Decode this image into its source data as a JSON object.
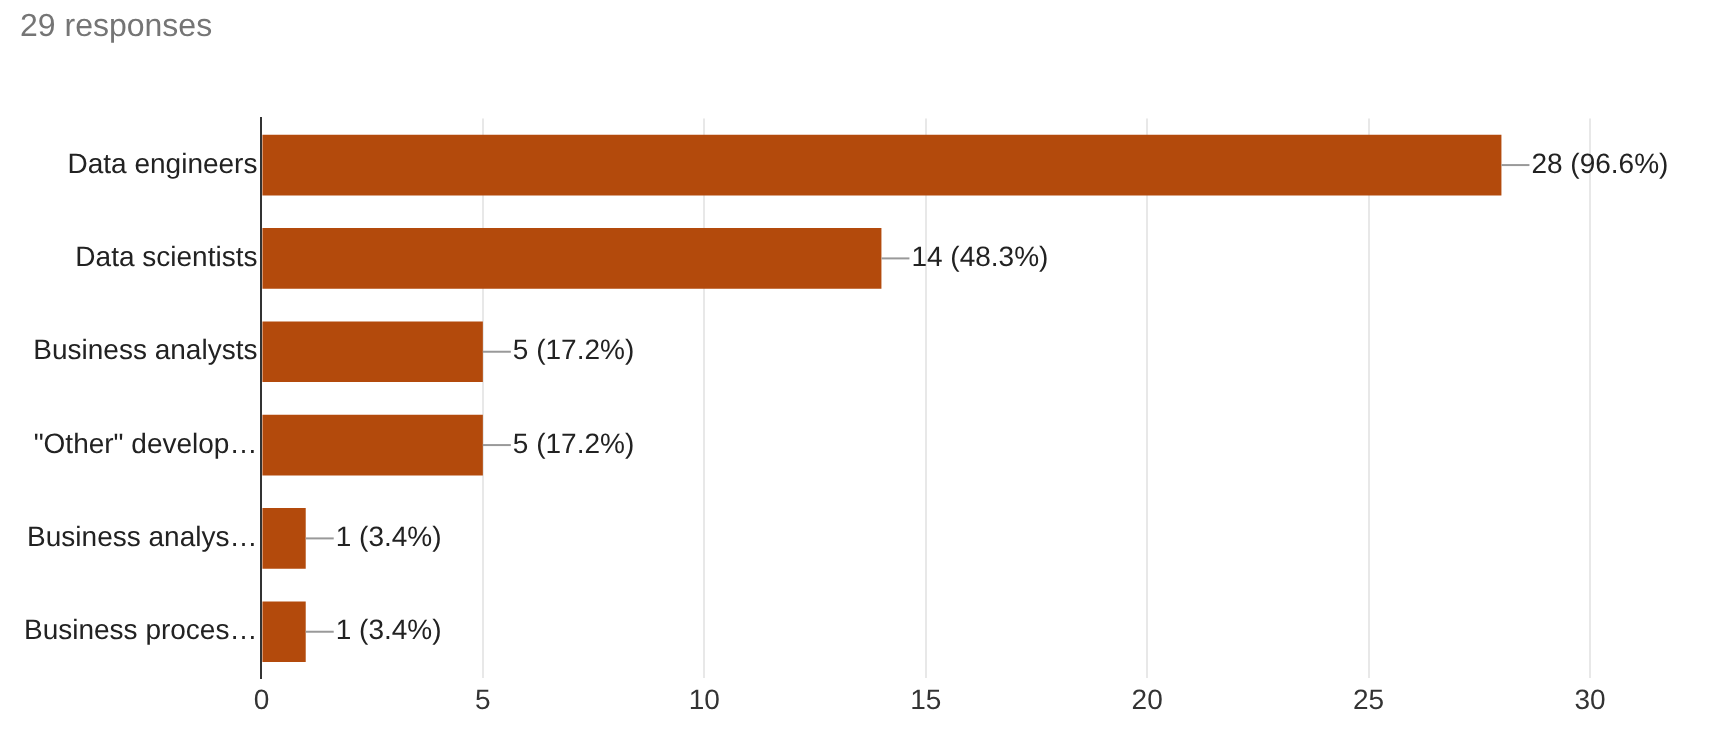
{
  "chart_data": {
    "type": "bar",
    "orientation": "horizontal",
    "title": "29 responses",
    "categories": [
      "Data engineers",
      "Data scientists",
      "Business analysts",
      "\"Other\" develop…",
      "Business analys…",
      "Business proces…"
    ],
    "values": [
      28,
      14,
      5,
      5,
      1,
      1
    ],
    "value_labels": [
      "28 (96.6%)",
      "14 (48.3%)",
      "5 (17.2%)",
      "5 (17.2%)",
      "1 (3.4%)",
      "1 (3.4%)"
    ],
    "color": "#b34a0c",
    "xlim": [
      0,
      30
    ],
    "xticks": [
      0,
      5,
      10,
      15,
      20,
      25,
      30
    ],
    "grid": "x",
    "legend": false
  }
}
